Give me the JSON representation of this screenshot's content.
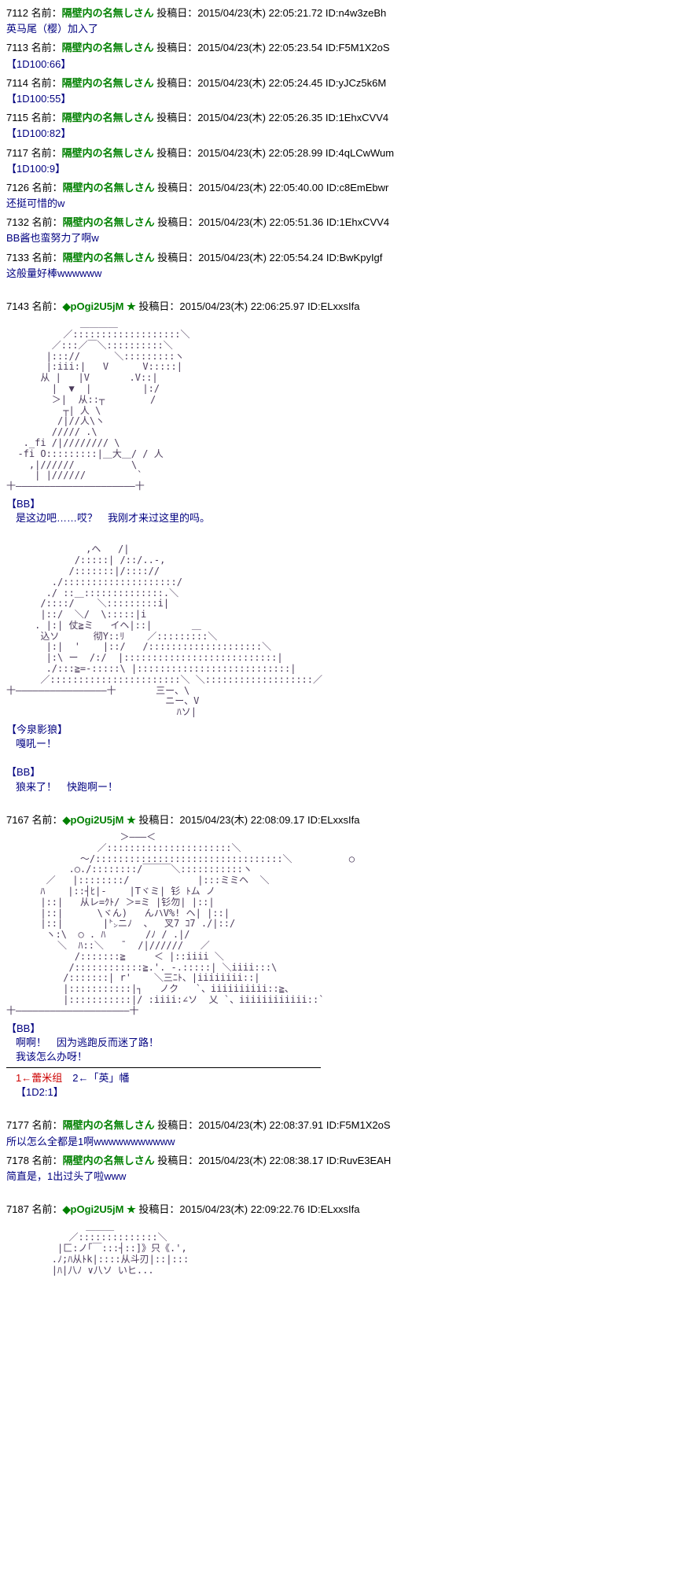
{
  "posts": [
    {
      "num": "7112",
      "name": "隔壁内の名無しさん",
      "date": "2015/04/23(木) 22:05:21.72",
      "id": "n4w3zeBh",
      "body": "英马尾（樱）加入了"
    },
    {
      "num": "7113",
      "name": "隔壁内の名無しさん",
      "date": "2015/04/23(木) 22:05:23.54",
      "id": "F5M1X2oS",
      "body": "【1D100:66】"
    },
    {
      "num": "7114",
      "name": "隔壁内の名無しさん",
      "date": "2015/04/23(木) 22:05:24.45",
      "id": "yJCz5k6M",
      "body": "【1D100:55】"
    },
    {
      "num": "7115",
      "name": "隔壁内の名無しさん",
      "date": "2015/04/23(木) 22:05:26.35",
      "id": "1EhxCVV4",
      "body": "【1D100:82】"
    },
    {
      "num": "7117",
      "name": "隔壁内の名無しさん",
      "date": "2015/04/23(木) 22:05:28.99",
      "id": "4qLCwWum",
      "body": "【1D100:9】"
    },
    {
      "num": "7126",
      "name": "隔壁内の名無しさん",
      "date": "2015/04/23(木) 22:05:40.00",
      "id": "c8EmEbwr",
      "body": "还挺可惜的w"
    },
    {
      "num": "7132",
      "name": "隔壁内の名無しさん",
      "date": "2015/04/23(木) 22:05:51.36",
      "id": "1EhxCVV4",
      "body": "BB酱也蛮努力了啊w"
    },
    {
      "num": "7133",
      "name": "隔壁内の名無しさん",
      "date": "2015/04/23(木) 22:05:54.24",
      "id": "BwKpyIgf",
      "body": "这般量好棒wwwwww"
    }
  ],
  "story7143": {
    "num": "7143",
    "trip": "◆pOgi2U5jM ★",
    "date": "2015/04/23(木) 22:06:25.97",
    "id": "ELxxsIfa",
    "aa1": "             ＿＿＿＿\n          ／:::::::::::::::::::＼\n        ／:::／￣＼::::::::::＼\n       |::://      ＼:::::::::ヽ\n       |:iii:|   V      V:::::|\n      从 |   |V       .V::|\n        |  ▼  |         |:/\n        ＞|  从::┬        /\n          ┬| 人 \\\n         /|//人\\ヽ\n        ///// .\\\n   ._fi /|//////// \\\n  -fi O:::::::::|＿大＿/ / 人\n    ,|//////          \\\n     | |//////         `\n十―――――――――――――――――――――十",
    "speaker1": "【BB】",
    "line1": "是这边吧……哎？　我刚才来过这里的吗。",
    "aa2": "              ,ヘ   /|\n            /:::::| /::/..-,\n           /:::::::|/:::://\n        ./::::::::::::::::::::/\n       ./ ::＿::::::::::::::.＼\n      /::::/    ＼:::::::::i|\n      |::/  ＼/  \\:::::|i\n     . |:| 仗≧ミ   イヘ|::|       ＿\n      込ソ      彻Y::ﾘ    ／:::::::::＼\n       |:|  '    |::/   /::::::::::::::::::::＼\n       |:\\ ー  /:/  |:::::::::::::::::::::::::::|\n       ./:::≧=-:::::\\ |:::::::::::::::::::::::::::|\n      ／:::::::::::::::::::::::＼ ＼:::::::::::::::::::／\n十――――――――――――――――十       三ー、\\\n                            ニー、V\n                              ﾊソ|",
    "speaker2": "【今泉影狼】",
    "line2": "嘎吼ー！",
    "speaker3": "【BB】",
    "line3": "狼来了！　快跑啊ー！"
  },
  "story7167": {
    "num": "7167",
    "trip": "◆pOgi2U5jM ★",
    "date": "2015/04/23(木) 22:08:09.17",
    "id": "ELxxsIfa",
    "aa": "                    ＞―――＜\n                ／::::::::::::::::::::::＼\n             ～/:::::::::::::::::::::::::::::::::＼          ○\n           .○./::::::::/￣￣￣＼:::::::::::ヽ\n       ／   |::::::::/            |:::ミミヘ  ＼\n      ﾊ    |::┤ﾋ|-    |Tヾミ| 钐 ﾄム ノ\n      |::|   从レ=ｸﾄ/ ＞=ミ |钐勿| |::|\n      |::|      \\ヾん)   んハV%! ヘ| |::|\n      |::|       |㌧ニﾉ  、  叉7 ｺ7 ./|::/\n       ヽ:\\  ○ . ﾊ       /ﾉ / .|/\n         ＼  ﾊ::＼   ̄   /|//////   ／\n            /:::::::≧     ＜ |::iiii ＼\n           /::::::::::::≧.'. -.:::::| ＼iiii:::\\\n          /:::::::| r'    ＼三ﾆﾄ、|iiiiiiii::|\n          |:::::::::::|┐   ノク   `、iiiiiiiiii::≧、\n          |:::::::::::|/ :iiii:∠ソ  乂 `、iiiiiiiiiiii::`\n十――――――――――――――――――――十",
    "speaker": "【BB】",
    "line1": "啊啊！　因为逃跑反而迷了路！",
    "line2": "我该怎么办呀！",
    "choice1_red": "1←蕾米组",
    "choice1_rest": "　2←「英」幡",
    "dice": "【1D2:1】"
  },
  "posts2": [
    {
      "num": "7177",
      "name": "隔壁内の名無しさん",
      "date": "2015/04/23(木) 22:08:37.91",
      "id": "F5M1X2oS",
      "body": "所以怎么全都是1啊wwwwwwwwwww"
    },
    {
      "num": "7178",
      "name": "隔壁内の名無しさん",
      "date": "2015/04/23(木) 22:08:38.17",
      "id": "RuvE3EAH",
      "body": "简直是，1出过头了啦www"
    }
  ],
  "story7187": {
    "num": "7187",
    "trip": "◆pOgi2U5jM ★",
    "date": "2015/04/23(木) 22:09:22.76",
    "id": "ELxxsIfa",
    "aa": "              ＿＿＿\n           ／::::::::::::::＼\n         |匚:ノ｢￣:::┤::]》只《.',\n        .ﾉ;ﾊ从ﾄk|::::从斗刃|::|:::\n        |ﾊ|八ﾉ ∨八ソ いヒ..."
  },
  "labels": {
    "name_prefix": "名前：",
    "post_prefix": "投稿日：",
    "id_prefix": "ID:"
  }
}
